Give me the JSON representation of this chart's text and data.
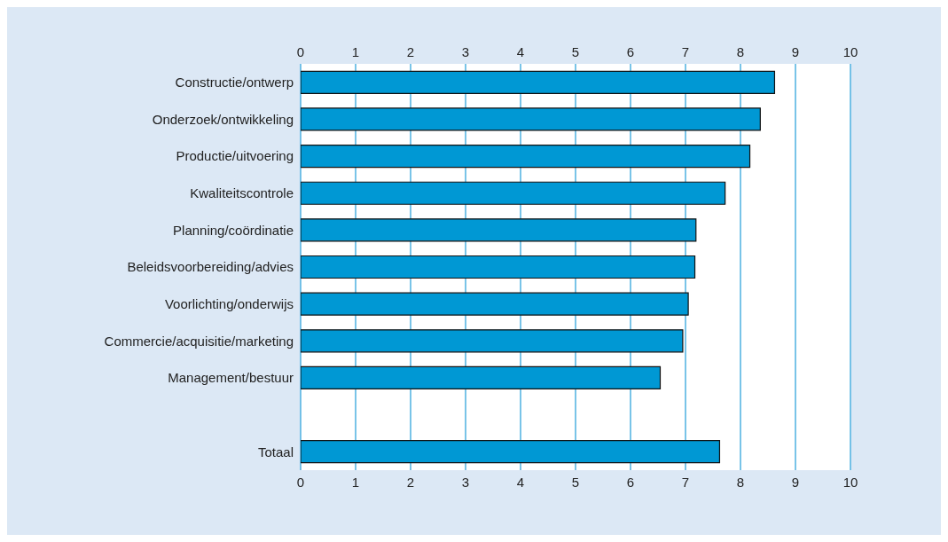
{
  "chart_data": {
    "type": "bar",
    "orientation": "horizontal",
    "categories": [
      "Constructie/ontwerp",
      "Onderzoek/ontwikkeling",
      "Productie/uitvoering",
      "Kwaliteitscontrole",
      "Planning/coördinatie",
      "Beleidsvoorbereiding/advies",
      "Voorlichting/onderwijs",
      "Commercie/acquisitie/marketing",
      "Management/bestuur",
      null,
      "Totaal"
    ],
    "values": [
      8.62,
      8.36,
      8.17,
      7.72,
      7.19,
      7.17,
      7.05,
      6.95,
      6.54,
      null,
      7.62
    ],
    "color": "#0098d4",
    "xlim": [
      0,
      10
    ],
    "xticks": [
      0,
      1,
      2,
      3,
      4,
      5,
      6,
      7,
      8,
      9,
      10
    ],
    "x2lim": [
      0,
      10
    ],
    "x2ticks": [
      0,
      1,
      2,
      3,
      4,
      5,
      6,
      7,
      8,
      9,
      10
    ],
    "grid": "x"
  }
}
